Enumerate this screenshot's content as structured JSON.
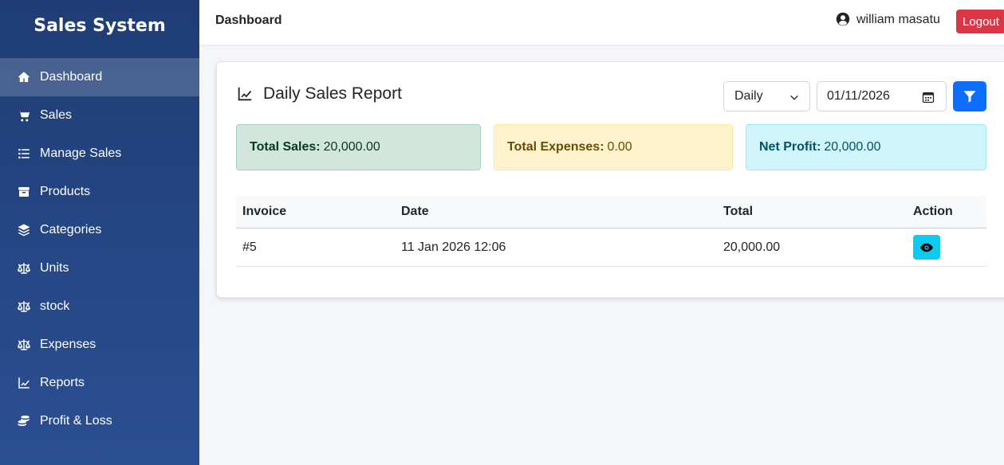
{
  "sidebar": {
    "brand": "Sales System",
    "items": [
      {
        "label": "Dashboard",
        "icon": "home-icon",
        "active": true
      },
      {
        "label": "Sales",
        "icon": "cart-icon"
      },
      {
        "label": "Manage Sales",
        "icon": "list-icon"
      },
      {
        "label": "Products",
        "icon": "box-icon"
      },
      {
        "label": "Categories",
        "icon": "layers-icon"
      },
      {
        "label": "Units",
        "icon": "scale-icon"
      },
      {
        "label": "stock",
        "icon": "scale-icon"
      },
      {
        "label": "Expenses",
        "icon": "scale-icon"
      },
      {
        "label": "Reports",
        "icon": "chart-line-icon"
      },
      {
        "label": "Profit & Loss",
        "icon": "coins-icon"
      }
    ]
  },
  "topbar": {
    "title": "Dashboard",
    "user_name": "william masatu",
    "logout_label": "Logout"
  },
  "report": {
    "title": "Daily Sales Report",
    "period_select": "Daily",
    "date_value": "01/11/2026",
    "stats": {
      "total_sales_label": "Total Sales:",
      "total_sales_value": "20,000.00",
      "total_expenses_label": "Total Expenses:",
      "total_expenses_value": "0.00",
      "net_profit_label": "Net Profit:",
      "net_profit_value": "20,000.00"
    },
    "table": {
      "headers": [
        "Invoice",
        "Date",
        "Total",
        "Action"
      ],
      "rows": [
        {
          "invoice": "#5",
          "date": "11 Jan 2026 12:06",
          "total": "20,000.00"
        }
      ]
    }
  },
  "colors": {
    "sidebar_top": "#1f3d74",
    "sidebar_bottom": "#2a4f92",
    "primary": "#0d6efd",
    "danger": "#dc3545",
    "info": "#0dcaf0"
  }
}
